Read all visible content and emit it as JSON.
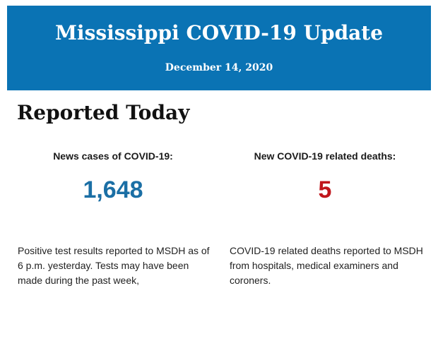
{
  "header": {
    "title": "Mississippi COVID-19 Update",
    "date": "December 14, 2020",
    "background_color": "#0a73b4"
  },
  "section": {
    "title": "Reported Today"
  },
  "stats": [
    {
      "label": "News cases of COVID-19:",
      "value": "1,648",
      "color": "#1b6fa5",
      "description": "Positive test results reported to MSDH as of 6 p.m. yesterday. Tests may have been made during the past week,"
    },
    {
      "label": "New COVID-19 related deaths:",
      "value": "5",
      "color": "#c0161c",
      "description": "COVID-19 related deaths reported to MSDH from hospitals, medical examiners and coroners."
    }
  ]
}
